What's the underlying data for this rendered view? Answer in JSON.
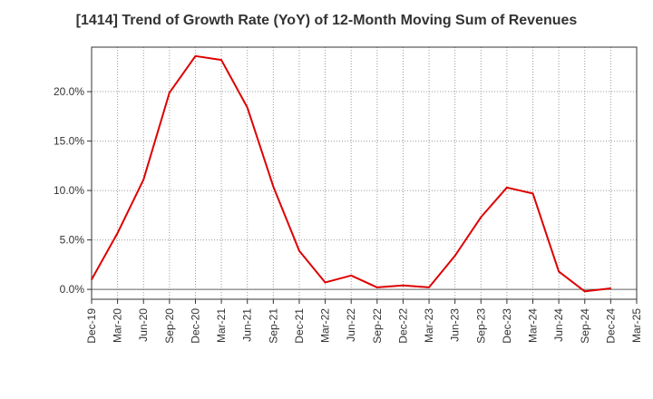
{
  "chart_data": {
    "type": "line",
    "title": "[1414]  Trend of Growth Rate (YoY) of 12-Month Moving Sum of Revenues",
    "xlabel": "",
    "ylabel": "",
    "x_tick_labels": [
      "Dec-19",
      "Mar-20",
      "Jun-20",
      "Sep-20",
      "Dec-20",
      "Mar-21",
      "Jun-21",
      "Sep-21",
      "Dec-21",
      "Mar-22",
      "Jun-22",
      "Sep-22",
      "Dec-22",
      "Mar-23",
      "Jun-23",
      "Sep-23",
      "Dec-23",
      "Mar-24",
      "Jun-24",
      "Sep-24",
      "Dec-24",
      "Mar-25"
    ],
    "y_tick_labels": [
      "0.0%",
      "5.0%",
      "10.0%",
      "15.0%",
      "20.0%"
    ],
    "y_ticks": [
      0,
      5,
      10,
      15,
      20
    ],
    "ylim": [
      -1.0,
      24.5
    ],
    "grid": true,
    "series": [
      {
        "color": "#dd0000",
        "x": [
          "Dec-19",
          "Mar-20",
          "Jun-20",
          "Sep-20",
          "Dec-20",
          "Mar-21",
          "Jun-21",
          "Sep-21",
          "Dec-21",
          "Mar-22",
          "Jun-22",
          "Sep-22",
          "Dec-22",
          "Mar-23",
          "Jun-23",
          "Sep-23",
          "Dec-23",
          "Mar-24",
          "Jun-24",
          "Sep-24",
          "Dec-24"
        ],
        "values": [
          1.0,
          5.7,
          11.1,
          19.9,
          23.6,
          23.2,
          18.4,
          10.4,
          3.9,
          0.7,
          1.4,
          0.2,
          0.4,
          0.2,
          3.4,
          7.3,
          10.3,
          9.7,
          1.8,
          -0.2,
          0.1
        ]
      }
    ]
  }
}
